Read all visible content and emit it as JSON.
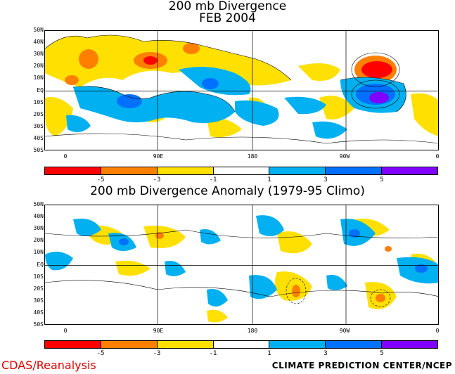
{
  "top_panel": {
    "title_line1": "200 mb Divergence",
    "title_line2": "FEB 2004"
  },
  "bottom_panel": {
    "title": "200 mb Divergence Anomaly (1979-95 Climo)"
  },
  "lat_labels": [
    "50N",
    "40N",
    "30N",
    "20N",
    "10N",
    "EQ",
    "10S",
    "20S",
    "30S",
    "40S",
    "50S"
  ],
  "lon_labels": [
    "0",
    "90E",
    "180",
    "90W",
    "0"
  ],
  "colorbar": {
    "colors": [
      "#ff0000",
      "#ff8000",
      "#ffe000",
      "#ffffff",
      "#00b0f0",
      "#0070ff",
      "#8000ff"
    ],
    "tick_labels": [
      "-5",
      "-3",
      "-1",
      "1",
      "3",
      "5"
    ]
  },
  "footer": {
    "left": "CDAS/Reanalysis",
    "right": "CLIMATE PREDICTION CENTER/NCEP"
  }
}
